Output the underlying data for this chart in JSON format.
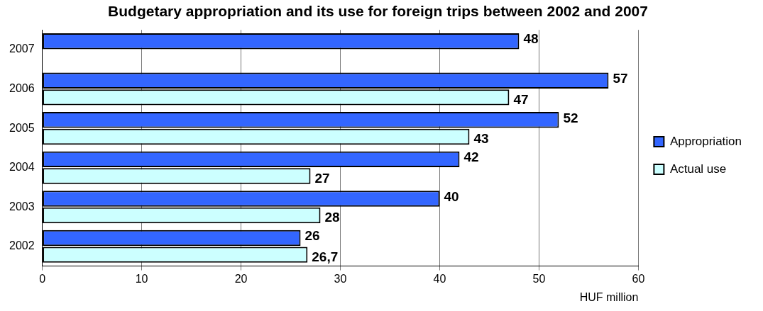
{
  "chart_data": {
    "type": "bar",
    "orientation": "horizontal",
    "title": "Budgetary appropriation and its use for foreign trips between 2002 and 2007",
    "xlabel": "HUF million",
    "categories": [
      "2007",
      "2006",
      "2005",
      "2004",
      "2003",
      "2002"
    ],
    "series": [
      {
        "name": "Appropriation",
        "color": "#3366ff",
        "values": [
          48,
          57,
          52,
          42,
          40,
          26
        ],
        "value_labels": [
          "48",
          "57",
          "52",
          "42",
          "40",
          "26"
        ]
      },
      {
        "name": "Actual use",
        "color": "#ccffff",
        "values": [
          null,
          47,
          43,
          27,
          28,
          26.7
        ],
        "value_labels": [
          null,
          "47",
          "43",
          "27",
          "28",
          "26,7"
        ]
      }
    ],
    "xlim": [
      0,
      60
    ],
    "xticks": [
      0,
      10,
      20,
      30,
      40,
      50,
      60
    ],
    "grid": "x",
    "legend": "right"
  }
}
